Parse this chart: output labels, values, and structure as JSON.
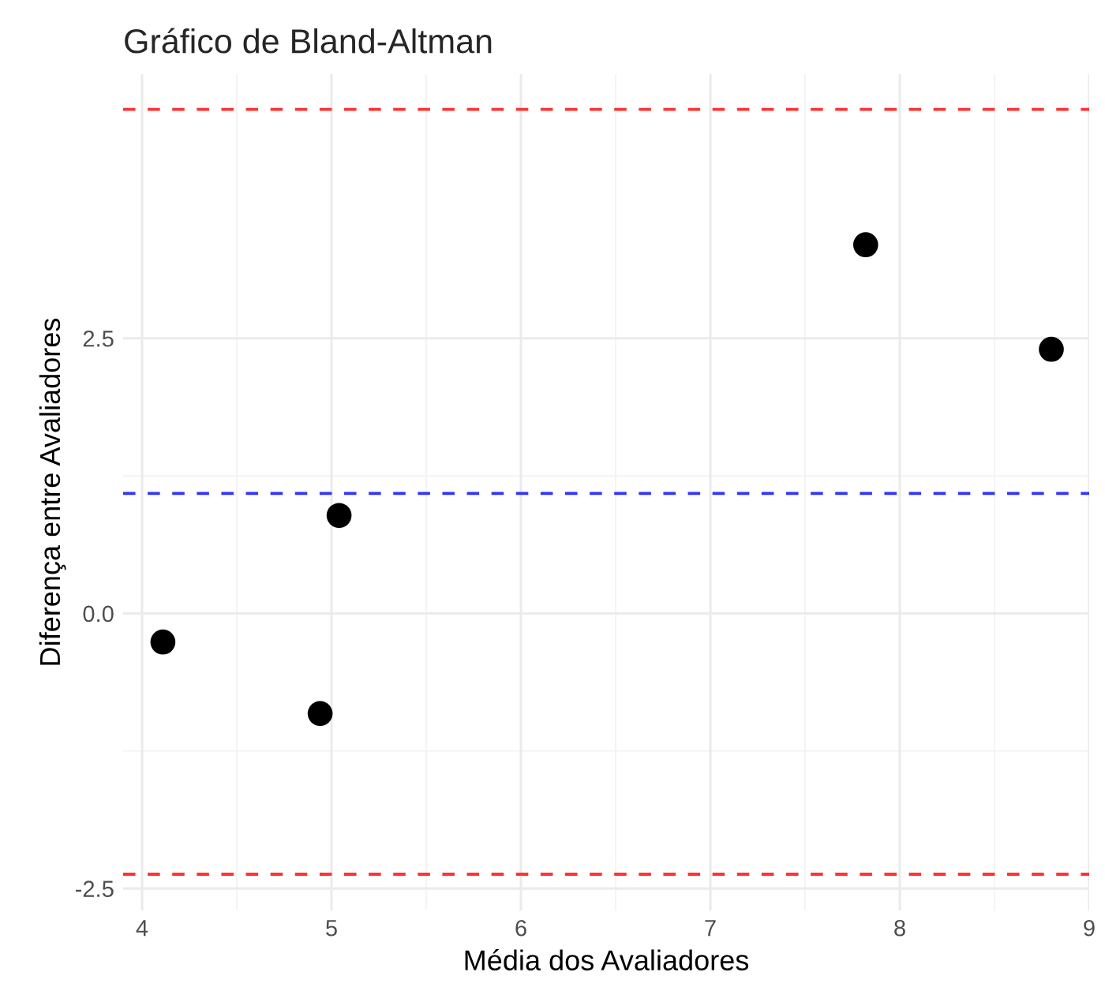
{
  "chart_data": {
    "type": "scatter",
    "title": "Gráfico de Bland-Altman",
    "xlabel": "Média dos Avaliadores",
    "ylabel": "Diferença entre Avaliadores",
    "x": [
      4.11,
      4.94,
      5.04,
      7.82,
      8.8
    ],
    "series": [
      {
        "color": "#000000",
        "values": [
          -0.26,
          -0.91,
          0.89,
          3.35,
          2.4
        ]
      }
    ],
    "xlim": [
      3.9,
      9.0
    ],
    "xticks": [
      4,
      5,
      6,
      7,
      8,
      9
    ],
    "ylim": [
      -2.7,
      4.9
    ],
    "yticks": [
      -2.5,
      {
        "value": 0,
        "label": "0.0"
      },
      2.5
    ],
    "ref_lines": [
      {
        "axis": "y",
        "value": 4.58,
        "color": "#ff3333",
        "line_style": "dashed"
      },
      {
        "axis": "y",
        "value": 1.09,
        "color": "#3333ff",
        "line_style": "dashed"
      },
      {
        "axis": "y",
        "value": -2.37,
        "color": "#ff3333",
        "line_style": "dashed"
      }
    ],
    "grid": true,
    "marker": "circle"
  }
}
